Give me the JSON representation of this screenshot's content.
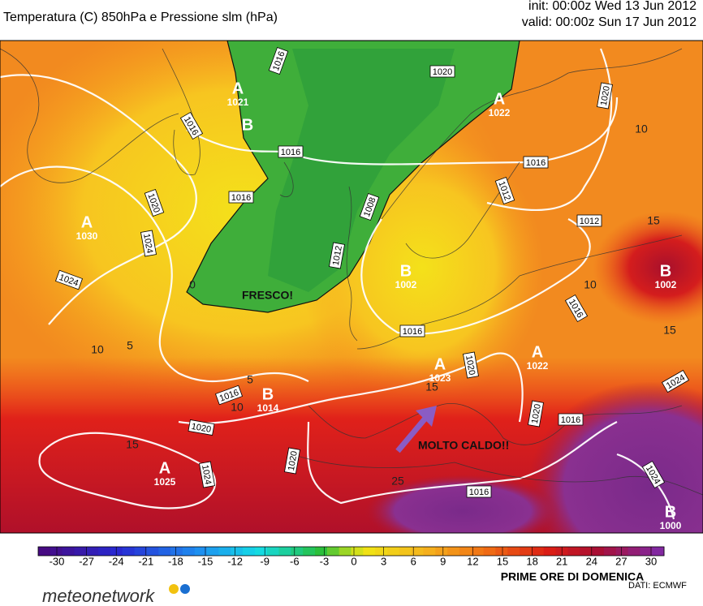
{
  "header": {
    "title": "Temperatura (C) 850hPa e Pressione slm (hPa)",
    "init": "init: 00:00z Wed 13 Jun 2012",
    "valid": "valid: 00:00z Sun 17 Jun 2012"
  },
  "map": {
    "pressure_centers": [
      {
        "symbol": "A",
        "value": "1021"
      },
      {
        "symbol": "B"
      },
      {
        "symbol": "A",
        "value": "1030"
      },
      {
        "symbol": "B",
        "value": "1002"
      },
      {
        "symbol": "A",
        "value": "1022"
      },
      {
        "symbol": "B",
        "value": "1002"
      },
      {
        "symbol": "A",
        "value": "1022"
      },
      {
        "symbol": "A",
        "value": "1023"
      },
      {
        "symbol": "B",
        "value": "1014"
      },
      {
        "symbol": "A",
        "value": "1025"
      },
      {
        "symbol": "B",
        "value": "1000"
      }
    ],
    "isobar_labels": [
      "1016",
      "1020",
      "1020",
      "1016",
      "1016",
      "1016",
      "1020",
      "1016",
      "1024",
      "1012",
      "1008",
      "1012",
      "1024",
      "1012",
      "1016",
      "1016",
      "1020",
      "1016",
      "1020",
      "1020",
      "1016",
      "1024",
      "1020",
      "1016",
      "1024",
      "1024"
    ],
    "contour_labels": [
      "10",
      "15",
      "10",
      "15",
      "10",
      "5",
      "5",
      "10",
      "15",
      "15",
      "25",
      "0"
    ],
    "annotations": [
      "FRESCO!",
      "MOLTO CALDO!!"
    ]
  },
  "colorbar": {
    "ticks": [
      -30,
      -27,
      -24,
      -21,
      -18,
      -15,
      -12,
      -9,
      -6,
      -3,
      0,
      3,
      6,
      9,
      12,
      15,
      18,
      21,
      24,
      27,
      30
    ]
  },
  "caption": "PRIME ORE DI DOMENICA",
  "source": "DATI:  ECMWF",
  "logo": "meteonetwork"
}
